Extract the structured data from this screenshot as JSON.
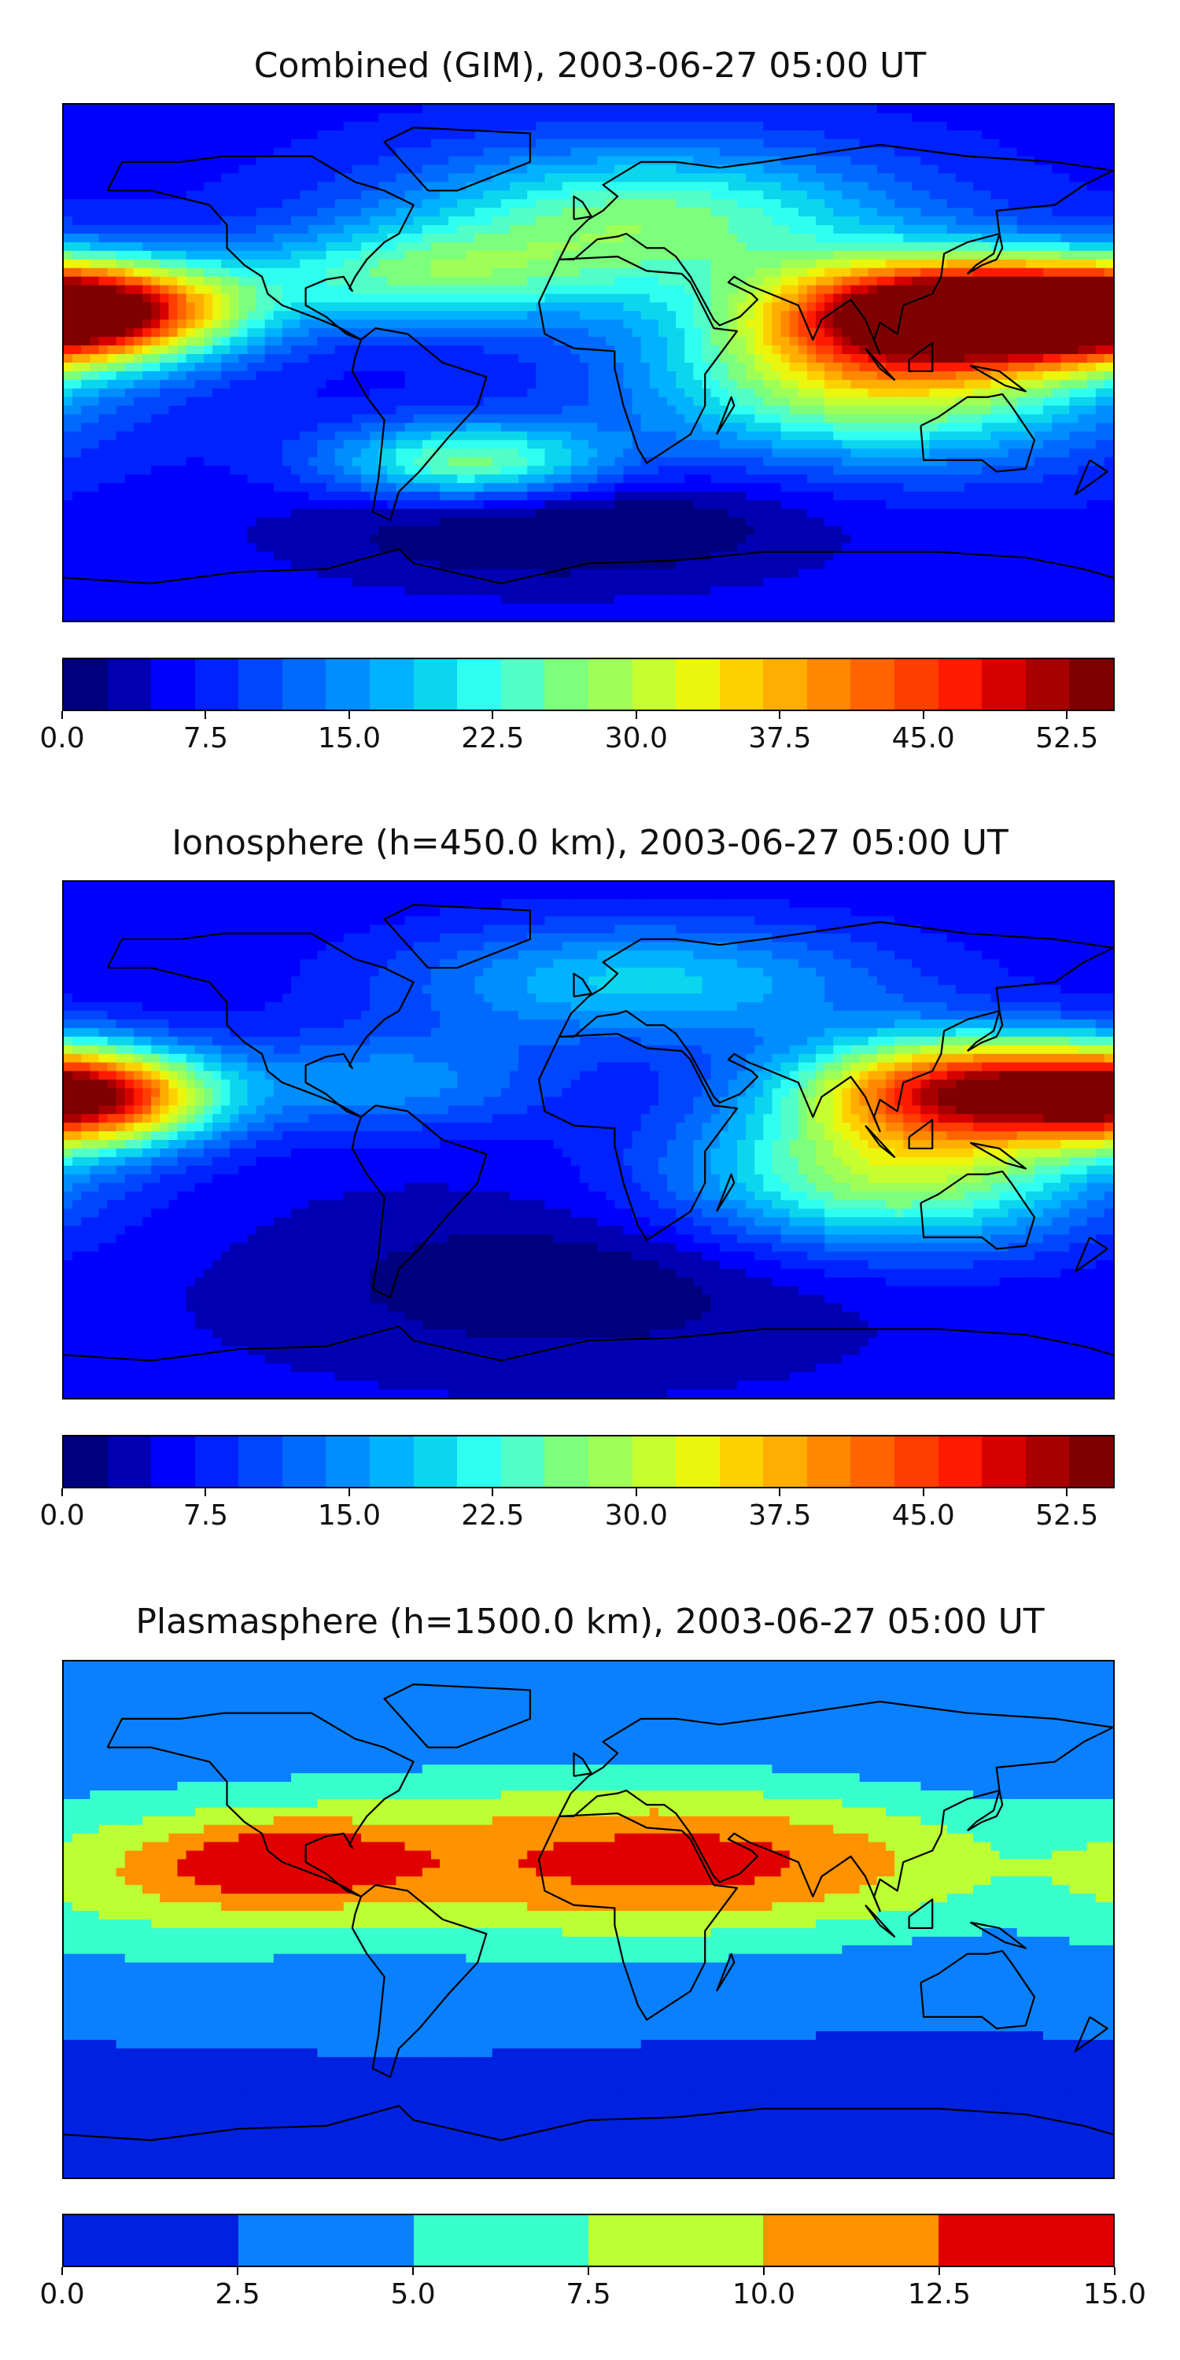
{
  "panels": [
    {
      "title": "Combined (GIM), 2003-06-27 05:00 UT",
      "field": "combined",
      "colorbar": {
        "min": 0.0,
        "max": 55.0,
        "colors": [
          "#00007f",
          "#0000b2",
          "#0000ff",
          "#0022ff",
          "#0046ff",
          "#006aff",
          "#008eff",
          "#00b2ff",
          "#0cd6ed",
          "#2ffff0",
          "#52ffc6",
          "#7cff7c",
          "#a0ff56",
          "#c6ff30",
          "#ecf50c",
          "#ffd000",
          "#ffad00",
          "#ff8800",
          "#ff6400",
          "#ff3e00",
          "#ff1a00",
          "#d60000",
          "#a80000",
          "#7f0000"
        ],
        "ticks": [
          "0.0",
          "7.5",
          "15.0",
          "22.5",
          "30.0",
          "37.5",
          "45.0",
          "52.5"
        ]
      }
    },
    {
      "title": "Ionosphere  (h=450.0 km), 2003-06-27 05:00 UT",
      "field": "ionosphere",
      "colorbar": {
        "min": 0.0,
        "max": 55.0,
        "colors": [
          "#00007f",
          "#0000b2",
          "#0000ff",
          "#0022ff",
          "#0046ff",
          "#006aff",
          "#008eff",
          "#00b2ff",
          "#0cd6ed",
          "#2ffff0",
          "#52ffc6",
          "#7cff7c",
          "#a0ff56",
          "#c6ff30",
          "#ecf50c",
          "#ffd000",
          "#ffad00",
          "#ff8800",
          "#ff6400",
          "#ff3e00",
          "#ff1a00",
          "#d60000",
          "#a80000",
          "#7f0000"
        ],
        "ticks": [
          "0.0",
          "7.5",
          "15.0",
          "22.5",
          "30.0",
          "37.5",
          "45.0",
          "52.5"
        ]
      }
    },
    {
      "title": "Plasmasphere (h=1500.0 km), 2003-06-27 05:00 UT",
      "field": "plasmasphere",
      "colorbar": {
        "min": 0.0,
        "max": 15.0,
        "colors": [
          "#0022e0",
          "#0a80ff",
          "#38ffcc",
          "#bcff34",
          "#ff9200",
          "#e00000"
        ],
        "ticks": [
          "0.0",
          "2.5",
          "5.0",
          "7.5",
          "10.0",
          "12.5",
          "15.0"
        ]
      }
    }
  ]
}
